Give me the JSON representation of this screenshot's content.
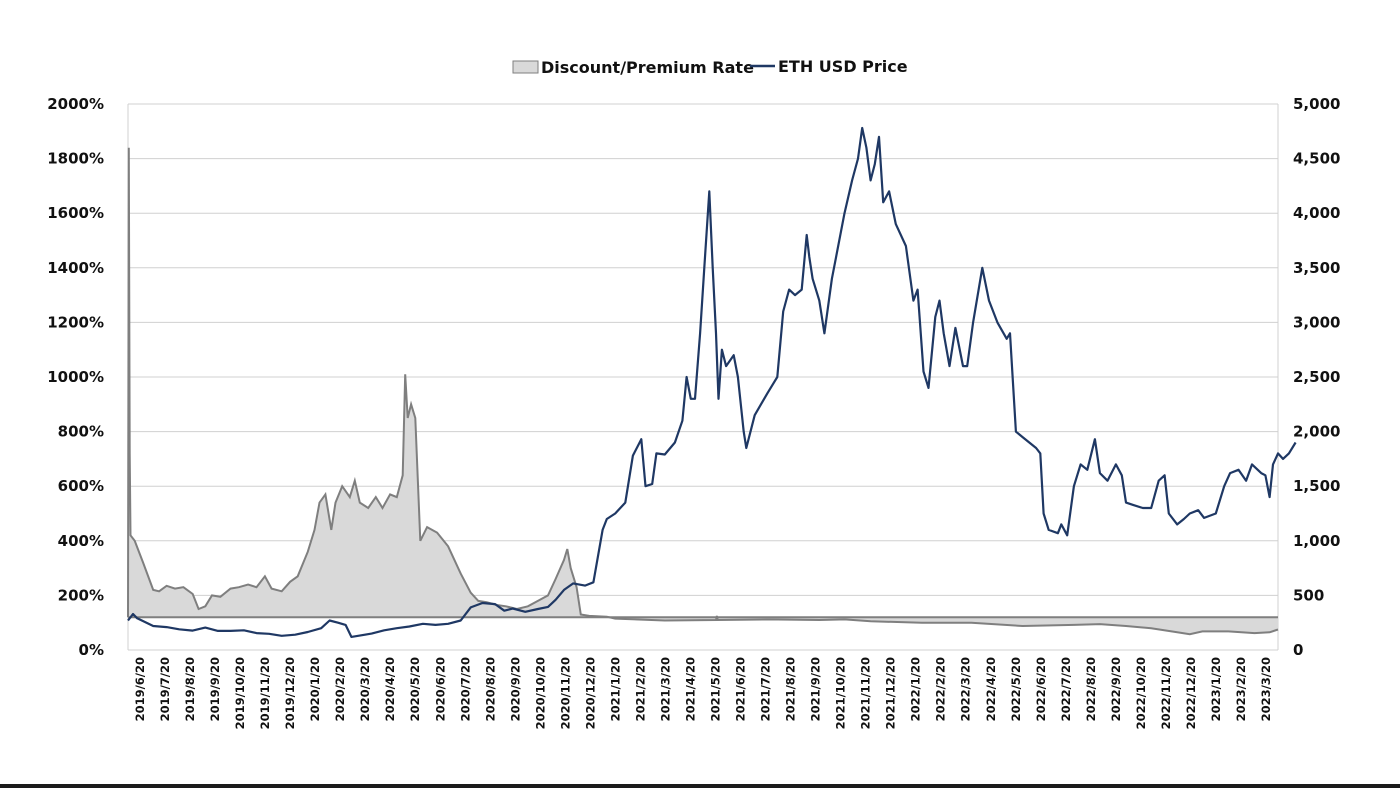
{
  "chart_data": {
    "type": "line",
    "legend": {
      "position": "top",
      "items": [
        {
          "label": "Discount/Premium Rate",
          "kind": "area",
          "fill": "#d9d9d9",
          "stroke": "#7f7f7f"
        },
        {
          "label": "ETH USD Price",
          "kind": "line",
          "color": "#1f3864"
        }
      ]
    },
    "grid": true,
    "y_left": {
      "min": 0,
      "max": 2000,
      "ticks": [
        0,
        200,
        400,
        600,
        800,
        1000,
        1200,
        1400,
        1600,
        1800,
        2000
      ],
      "tick_labels": [
        "0%",
        "200%",
        "400%",
        "600%",
        "800%",
        "1000%",
        "1200%",
        "1400%",
        "1600%",
        "1800%",
        "2000%"
      ]
    },
    "y_right": {
      "min": 0,
      "max": 5000,
      "ticks": [
        0,
        500,
        1000,
        1500,
        2000,
        2500,
        3000,
        3500,
        4000,
        4500,
        5000
      ],
      "tick_labels": [
        "0",
        "500",
        "1,000",
        "1,500",
        "2,000",
        "2,500",
        "3,000",
        "3,500",
        "4,000",
        "4,500",
        "5,000"
      ]
    },
    "x": {
      "start": "2019-06-20",
      "end": "2023-03-20",
      "tick_labels": [
        "2019/6/20",
        "2019/7/20",
        "2019/8/20",
        "2019/9/20",
        "2019/10/20",
        "2019/11/20",
        "2019/12/20",
        "2020/1/20",
        "2020/2/20",
        "2020/3/20",
        "2020/4/20",
        "2020/5/20",
        "2020/6/20",
        "2020/7/20",
        "2020/8/20",
        "2020/9/20",
        "2020/10/20",
        "2020/11/20",
        "2020/12/20",
        "2021/1/20",
        "2021/2/20",
        "2021/3/20",
        "2021/4/20",
        "2021/5/20",
        "2021/6/20",
        "2021/7/20",
        "2021/8/20",
        "2021/9/20",
        "2021/10/20",
        "2021/11/20",
        "2021/12/20",
        "2022/1/20",
        "2022/2/20",
        "2022/3/20",
        "2022/4/20",
        "2022/5/20",
        "2022/6/20",
        "2022/7/20",
        "2022/8/20",
        "2022/9/20",
        "2022/10/20",
        "2022/11/20",
        "2022/12/20",
        "2023/1/20",
        "2023/2/20",
        "2023/3/20"
      ]
    },
    "series": [
      {
        "name": "Discount/Premium Rate",
        "axis": "left",
        "kind": "area",
        "baseline": 120,
        "points": [
          [
            "2019-06-20",
            120
          ],
          [
            "2019-06-21",
            1840
          ],
          [
            "2019-06-22",
            720
          ],
          [
            "2019-06-23",
            420
          ],
          [
            "2019-06-28",
            400
          ],
          [
            "2019-07-08",
            320
          ],
          [
            "2019-07-20",
            220
          ],
          [
            "2019-07-27",
            215
          ],
          [
            "2019-08-05",
            235
          ],
          [
            "2019-08-15",
            225
          ],
          [
            "2019-08-25",
            230
          ],
          [
            "2019-09-05",
            205
          ],
          [
            "2019-09-12",
            150
          ],
          [
            "2019-09-20",
            160
          ],
          [
            "2019-09-28",
            200
          ],
          [
            "2019-10-08",
            195
          ],
          [
            "2019-10-20",
            225
          ],
          [
            "2019-10-30",
            230
          ],
          [
            "2019-11-10",
            240
          ],
          [
            "2019-11-20",
            230
          ],
          [
            "2019-11-30",
            270
          ],
          [
            "2019-12-08",
            225
          ],
          [
            "2019-12-20",
            215
          ],
          [
            "2019-12-30",
            250
          ],
          [
            "2020-01-08",
            270
          ],
          [
            "2020-01-20",
            360
          ],
          [
            "2020-01-28",
            440
          ],
          [
            "2020-02-03",
            540
          ],
          [
            "2020-02-10",
            570
          ],
          [
            "2020-02-17",
            440
          ],
          [
            "2020-02-22",
            540
          ],
          [
            "2020-03-01",
            600
          ],
          [
            "2020-03-10",
            560
          ],
          [
            "2020-03-16",
            620
          ],
          [
            "2020-03-22",
            540
          ],
          [
            "2020-04-01",
            520
          ],
          [
            "2020-04-10",
            560
          ],
          [
            "2020-04-18",
            520
          ],
          [
            "2020-04-27",
            570
          ],
          [
            "2020-05-05",
            560
          ],
          [
            "2020-05-12",
            640
          ],
          [
            "2020-05-15",
            1010
          ],
          [
            "2020-05-18",
            850
          ],
          [
            "2020-05-22",
            900
          ],
          [
            "2020-05-27",
            850
          ],
          [
            "2020-06-02",
            400
          ],
          [
            "2020-06-10",
            450
          ],
          [
            "2020-06-22",
            430
          ],
          [
            "2020-07-05",
            380
          ],
          [
            "2020-07-20",
            280
          ],
          [
            "2020-08-01",
            210
          ],
          [
            "2020-08-10",
            180
          ],
          [
            "2020-08-20",
            175
          ],
          [
            "2020-09-01",
            165
          ],
          [
            "2020-09-12",
            160
          ],
          [
            "2020-09-25",
            150
          ],
          [
            "2020-10-08",
            160
          ],
          [
            "2020-10-20",
            180
          ],
          [
            "2020-11-01",
            200
          ],
          [
            "2020-11-10",
            260
          ],
          [
            "2020-11-20",
            330
          ],
          [
            "2020-11-24",
            370
          ],
          [
            "2020-11-28",
            300
          ],
          [
            "2020-12-05",
            230
          ],
          [
            "2020-12-10",
            130
          ],
          [
            "2020-12-20",
            125
          ],
          [
            "2021-01-10",
            122
          ],
          [
            "2021-01-20",
            115
          ],
          [
            "2021-03-20",
            108
          ],
          [
            "2021-05-20",
            110
          ],
          [
            "2021-05-21",
            125
          ],
          [
            "2021-05-22",
            110
          ],
          [
            "2021-07-20",
            112
          ],
          [
            "2021-09-20",
            110
          ],
          [
            "2021-10-20",
            112
          ],
          [
            "2021-11-20",
            105
          ],
          [
            "2022-01-20",
            100
          ],
          [
            "2022-03-20",
            100
          ],
          [
            "2022-05-20",
            88
          ],
          [
            "2022-07-20",
            92
          ],
          [
            "2022-08-20",
            95
          ],
          [
            "2022-09-20",
            88
          ],
          [
            "2022-10-20",
            80
          ],
          [
            "2022-11-20",
            65
          ],
          [
            "2022-12-05",
            58
          ],
          [
            "2022-12-20",
            68
          ],
          [
            "2023-01-20",
            68
          ],
          [
            "2023-02-20",
            62
          ],
          [
            "2023-03-10",
            65
          ],
          [
            "2023-03-20",
            75
          ]
        ]
      },
      {
        "name": "ETH USD Price",
        "axis": "right",
        "kind": "line",
        "points": [
          [
            "2019-06-20",
            270
          ],
          [
            "2019-06-26",
            330
          ],
          [
            "2019-07-01",
            290
          ],
          [
            "2019-07-20",
            220
          ],
          [
            "2019-08-05",
            210
          ],
          [
            "2019-08-20",
            190
          ],
          [
            "2019-09-05",
            178
          ],
          [
            "2019-09-20",
            205
          ],
          [
            "2019-10-05",
            175
          ],
          [
            "2019-10-20",
            175
          ],
          [
            "2019-11-05",
            180
          ],
          [
            "2019-11-20",
            155
          ],
          [
            "2019-12-05",
            148
          ],
          [
            "2019-12-20",
            130
          ],
          [
            "2020-01-05",
            140
          ],
          [
            "2020-01-20",
            165
          ],
          [
            "2020-02-05",
            200
          ],
          [
            "2020-02-15",
            270
          ],
          [
            "2020-02-25",
            250
          ],
          [
            "2020-03-05",
            230
          ],
          [
            "2020-03-12",
            120
          ],
          [
            "2020-03-20",
            130
          ],
          [
            "2020-04-05",
            150
          ],
          [
            "2020-04-20",
            180
          ],
          [
            "2020-05-05",
            200
          ],
          [
            "2020-05-20",
            215
          ],
          [
            "2020-06-05",
            240
          ],
          [
            "2020-06-20",
            230
          ],
          [
            "2020-07-05",
            240
          ],
          [
            "2020-07-20",
            270
          ],
          [
            "2020-08-01",
            390
          ],
          [
            "2020-08-15",
            430
          ],
          [
            "2020-08-30",
            420
          ],
          [
            "2020-09-10",
            360
          ],
          [
            "2020-09-20",
            380
          ],
          [
            "2020-10-05",
            350
          ],
          [
            "2020-10-20",
            375
          ],
          [
            "2020-11-01",
            395
          ],
          [
            "2020-11-10",
            460
          ],
          [
            "2020-11-20",
            550
          ],
          [
            "2020-12-01",
            610
          ],
          [
            "2020-12-15",
            590
          ],
          [
            "2020-12-25",
            620
          ],
          [
            "2021-01-05",
            1100
          ],
          [
            "2021-01-10",
            1200
          ],
          [
            "2021-01-20",
            1250
          ],
          [
            "2021-02-01",
            1350
          ],
          [
            "2021-02-10",
            1780
          ],
          [
            "2021-02-20",
            1930
          ],
          [
            "2021-02-25",
            1500
          ],
          [
            "2021-03-05",
            1520
          ],
          [
            "2021-03-10",
            1800
          ],
          [
            "2021-03-20",
            1790
          ],
          [
            "2021-04-01",
            1900
          ],
          [
            "2021-04-10",
            2100
          ],
          [
            "2021-04-15",
            2500
          ],
          [
            "2021-04-20",
            2300
          ],
          [
            "2021-04-25",
            2300
          ],
          [
            "2021-05-01",
            2900
          ],
          [
            "2021-05-06",
            3500
          ],
          [
            "2021-05-12",
            4200
          ],
          [
            "2021-05-16",
            3500
          ],
          [
            "2021-05-20",
            2900
          ],
          [
            "2021-05-23",
            2300
          ],
          [
            "2021-05-27",
            2750
          ],
          [
            "2021-06-01",
            2600
          ],
          [
            "2021-06-10",
            2700
          ],
          [
            "2021-06-15",
            2500
          ],
          [
            "2021-06-22",
            2000
          ],
          [
            "2021-06-25",
            1850
          ],
          [
            "2021-07-05",
            2150
          ],
          [
            "2021-07-20",
            2350
          ],
          [
            "2021-08-01",
            2500
          ],
          [
            "2021-08-08",
            3100
          ],
          [
            "2021-08-15",
            3300
          ],
          [
            "2021-08-22",
            3250
          ],
          [
            "2021-08-30",
            3300
          ],
          [
            "2021-09-05",
            3800
          ],
          [
            "2021-09-08",
            3600
          ],
          [
            "2021-09-12",
            3400
          ],
          [
            "2021-09-20",
            3200
          ],
          [
            "2021-09-26",
            2900
          ],
          [
            "2021-10-05",
            3400
          ],
          [
            "2021-10-10",
            3600
          ],
          [
            "2021-10-20",
            4000
          ],
          [
            "2021-10-29",
            4300
          ],
          [
            "2021-11-05",
            4500
          ],
          [
            "2021-11-10",
            4780
          ],
          [
            "2021-11-15",
            4600
          ],
          [
            "2021-11-20",
            4300
          ],
          [
            "2021-11-25",
            4450
          ],
          [
            "2021-11-30",
            4700
          ],
          [
            "2021-12-05",
            4100
          ],
          [
            "2021-12-12",
            4200
          ],
          [
            "2021-12-20",
            3900
          ],
          [
            "2022-01-01",
            3700
          ],
          [
            "2022-01-10",
            3200
          ],
          [
            "2022-01-15",
            3300
          ],
          [
            "2022-01-22",
            2550
          ],
          [
            "2022-01-28",
            2400
          ],
          [
            "2022-02-05",
            3050
          ],
          [
            "2022-02-10",
            3200
          ],
          [
            "2022-02-15",
            2900
          ],
          [
            "2022-02-22",
            2600
          ],
          [
            "2022-03-01",
            2950
          ],
          [
            "2022-03-10",
            2600
          ],
          [
            "2022-03-15",
            2600
          ],
          [
            "2022-03-22",
            3000
          ],
          [
            "2022-04-02",
            3500
          ],
          [
            "2022-04-10",
            3200
          ],
          [
            "2022-04-20",
            3000
          ],
          [
            "2022-05-01",
            2850
          ],
          [
            "2022-05-05",
            2900
          ],
          [
            "2022-05-12",
            2000
          ],
          [
            "2022-05-20",
            1950
          ],
          [
            "2022-06-05",
            1850
          ],
          [
            "2022-06-10",
            1800
          ],
          [
            "2022-06-14",
            1250
          ],
          [
            "2022-06-20",
            1100
          ],
          [
            "2022-07-01",
            1070
          ],
          [
            "2022-07-05",
            1150
          ],
          [
            "2022-07-12",
            1050
          ],
          [
            "2022-07-20",
            1500
          ],
          [
            "2022-07-28",
            1700
          ],
          [
            "2022-08-05",
            1650
          ],
          [
            "2022-08-14",
            1930
          ],
          [
            "2022-08-20",
            1620
          ],
          [
            "2022-08-29",
            1550
          ],
          [
            "2022-09-08",
            1700
          ],
          [
            "2022-09-15",
            1600
          ],
          [
            "2022-09-20",
            1350
          ],
          [
            "2022-09-28",
            1330
          ],
          [
            "2022-10-10",
            1300
          ],
          [
            "2022-10-20",
            1300
          ],
          [
            "2022-10-29",
            1550
          ],
          [
            "2022-11-05",
            1600
          ],
          [
            "2022-11-10",
            1250
          ],
          [
            "2022-11-20",
            1150
          ],
          [
            "2022-11-28",
            1200
          ],
          [
            "2022-12-05",
            1250
          ],
          [
            "2022-12-15",
            1280
          ],
          [
            "2022-12-22",
            1210
          ],
          [
            "2023-01-05",
            1250
          ],
          [
            "2023-01-15",
            1500
          ],
          [
            "2023-01-22",
            1620
          ],
          [
            "2023-02-01",
            1650
          ],
          [
            "2023-02-10",
            1550
          ],
          [
            "2023-02-17",
            1700
          ],
          [
            "2023-02-28",
            1620
          ],
          [
            "2023-03-05",
            1600
          ],
          [
            "2023-03-10",
            1400
          ],
          [
            "2023-03-14",
            1700
          ],
          [
            "2023-03-20",
            1800
          ],
          [
            "2023-03-26",
            1750
          ],
          [
            "2023-04-02",
            1800
          ],
          [
            "2023-04-10",
            1900
          ]
        ]
      }
    ]
  }
}
